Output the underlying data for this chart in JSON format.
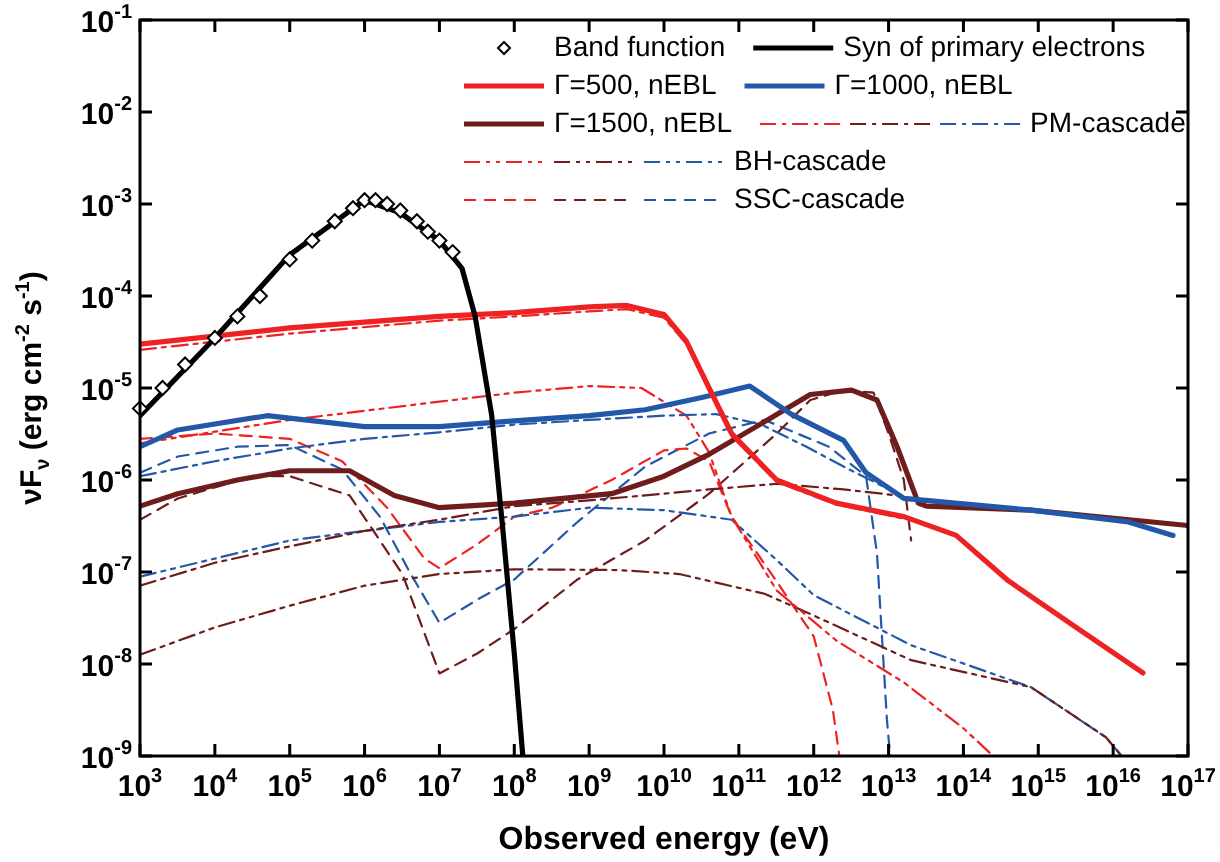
{
  "chart_data": {
    "type": "line",
    "xlabel": "Observed energy (eV)",
    "ylabel": "νF$_{ν}$ (erg cm$^{-2}$ s$^{-1}$)",
    "log": "xy",
    "grid": false,
    "legend": "top right",
    "marker": "none",
    "xlim": [
      1000.0,
      1e+17
    ],
    "ylim": [
      1e-09,
      0.1
    ],
    "xticks": [
      {
        "value": 1000.0,
        "label": "10$^{3}$"
      },
      {
        "value": 10000.0,
        "label": "10$^{4}$"
      },
      {
        "value": 100000.0,
        "label": "10$^{5}$"
      },
      {
        "value": 1000000.0,
        "label": "10$^{6}$"
      },
      {
        "value": 10000000.0,
        "label": "10$^{7}$"
      },
      {
        "value": 100000000.0,
        "label": "10$^{8}$"
      },
      {
        "value": 1000000000.0,
        "label": "10$^{9}$"
      },
      {
        "value": 10000000000.0,
        "label": "10$^{10}$"
      },
      {
        "value": 100000000000.0,
        "label": "10$^{11}$"
      },
      {
        "value": 1000000000000.0,
        "label": "10$^{12}$"
      },
      {
        "value": 10000000000000.0,
        "label": "10$^{13}$"
      },
      {
        "value": 100000000000000.0,
        "label": "10$^{14}$"
      },
      {
        "value": 1000000000000000.0,
        "label": "10$^{15}$"
      },
      {
        "value": 1e+16,
        "label": "10$^{16}$"
      },
      {
        "value": 1e+17,
        "label": "10$^{17}$"
      }
    ],
    "yticks": [
      {
        "value": 1e-09,
        "label": "10$^{-9}$"
      },
      {
        "value": 1e-08,
        "label": "10$^{-8}$"
      },
      {
        "value": 1e-07,
        "label": "10$^{-7}$"
      },
      {
        "value": 1e-06,
        "label": "10$^{-6}$"
      },
      {
        "value": 1e-05,
        "label": "10$^{-5}$"
      },
      {
        "value": 0.0001,
        "label": "10$^{-4}$"
      },
      {
        "value": 0.001,
        "label": "10$^{-3}$"
      },
      {
        "value": 0.01,
        "label": "10$^{-2}$"
      },
      {
        "value": 0.1,
        "label": "10$^{-1}$"
      }
    ],
    "series": [
      {
        "name": "Band function",
        "type": "scatter",
        "marker": "diamond",
        "color": "#000000",
        "x": [
          1000.0,
          2000.0,
          4000.0,
          10000.0,
          20000.0,
          40000.0,
          100000.0,
          200000.0,
          400000.0,
          700000.0,
          1000000.0,
          1400000.0,
          2000000.0,
          3000000.0,
          5000000.0,
          7000000.0,
          10000000.0,
          15000000.0
        ],
        "values": [
          6e-06,
          1e-05,
          1.8e-05,
          3.5e-05,
          6e-05,
          0.0001,
          0.00025,
          0.0004,
          0.00065,
          0.0009,
          0.0011,
          0.0011,
          0.001,
          0.00085,
          0.00065,
          0.0005,
          0.0004,
          0.0003
        ]
      },
      {
        "name": "Syn of primary electrons",
        "type": "line",
        "line_style": "solid",
        "color": "#000000",
        "x": [
          1000.0,
          10000.0,
          100000.0,
          1000000.0,
          3000000.0,
          10000000.0,
          20000000.0,
          30000000.0,
          50000000.0,
          70000000.0,
          100000000.0,
          130000000.0
        ],
        "values": [
          5e-06,
          3.5e-05,
          0.00028,
          0.0011,
          0.0008,
          0.0004,
          0.0002,
          6e-05,
          5e-06,
          3e-07,
          1.3e-08,
          1e-09
        ]
      },
      {
        "name": "Γ=500, nEBL",
        "type": "line",
        "line_style": "solid",
        "color": "#ee2222",
        "x": [
          1000.0,
          100000.0,
          10000000.0,
          100000000.0,
          1000000000.0,
          3200000000.0,
          10000000000.0,
          20000000000.0,
          40000000000.0,
          80000000000.0,
          320000000000.0,
          2000000000000.0,
          16000000000000.0,
          80000000000000.0,
          400000000000000.0,
          3200000000000000.0,
          2.5e+16
        ],
        "values": [
          3e-05,
          4.5e-05,
          6e-05,
          6.6e-05,
          7.6e-05,
          7.9e-05,
          6.3e-05,
          3.2e-05,
          1e-05,
          3.2e-06,
          1e-06,
          5.6e-07,
          4e-07,
          2.5e-07,
          8e-08,
          2.5e-08,
          8e-09
        ]
      },
      {
        "name": "Γ=1000, nEBL",
        "type": "line",
        "line_style": "solid",
        "color": "#2358a8",
        "x": [
          1000.0,
          3200.0,
          50000.0,
          1000000.0,
          10000000.0,
          100000000.0,
          1000000000.0,
          5600000000.0,
          32000000000.0,
          140000000000.0,
          500000000000.0,
          2500000000000.0,
          5000000000000.0,
          16000000000000.0,
          800000000000000.0,
          1.6e+16,
          6.3e+16
        ],
        "values": [
          2.3e-06,
          3.5e-06,
          5e-06,
          3.8e-06,
          3.8e-06,
          4.4e-06,
          5e-06,
          5.8e-06,
          7.9e-06,
          1.05e-05,
          5.2e-06,
          2.7e-06,
          1.2e-06,
          6.3e-07,
          4.7e-07,
          3.5e-07,
          2.5e-07
        ]
      },
      {
        "name": "Γ=1500, nEBL",
        "type": "line",
        "line_style": "solid",
        "color": "#6e1c1c",
        "x": [
          1000.0,
          3200.0,
          20000.0,
          100000.0,
          630000.0,
          2500000.0,
          10000000.0,
          100000000.0,
          2000000000.0,
          10000000000.0,
          40000000000.0,
          180000000000.0,
          900000000000.0,
          3200000000000.0,
          7000000000000.0,
          13000000000000.0,
          25000000000000.0,
          32000000000000.0,
          800000000000000.0,
          1e+17
        ],
        "values": [
          5.2e-07,
          7.1e-07,
          1e-06,
          1.26e-06,
          1.26e-06,
          6.8e-07,
          5e-07,
          5.6e-07,
          7.1e-07,
          1.1e-06,
          1.9e-06,
          3.9e-06,
          8.5e-06,
          9.5e-06,
          7.4e-06,
          2.3e-06,
          5.6e-07,
          5.2e-07,
          4.7e-07,
          3.2e-07
        ]
      },
      {
        "type": "line",
        "line_style": "dashdot",
        "color": "#ee2222",
        "x": [
          1000.0,
          100000.0,
          10000000.0,
          100000000.0,
          1000000000.0,
          3200000000.0,
          10000000000.0,
          20000000000.0,
          40000000000.0,
          80000000000.0,
          320000000000.0,
          2000000000000.0,
          16000000000000.0
        ],
        "values": [
          2.6e-05,
          3.9e-05,
          5.4e-05,
          6e-05,
          6.8e-05,
          7.2e-05,
          5.8e-05,
          3e-05,
          9.5e-06,
          3e-06,
          9.5e-07,
          5.4e-07,
          3.8e-07
        ]
      },
      {
        "type": "line",
        "line_style": "dashdot",
        "color": "#6e1c1c",
        "x": [
          1000.0,
          10000.0,
          100000.0,
          1000000.0,
          10000000.0,
          100000000.0,
          1000000000.0,
          10000000000.0,
          40000000000.0,
          320000000000.0,
          2500000000000.0,
          13000000000000.0,
          22000000000000.0
        ],
        "values": [
          7.1e-08,
          1.26e-07,
          1.9e-07,
          2.8e-07,
          3.7e-07,
          5.2e-07,
          6e-07,
          7.1e-07,
          7.9e-07,
          9.1e-07,
          7.9e-07,
          6.8e-07,
          6e-07
        ]
      },
      {
        "name": "PM-cascade",
        "type": "line",
        "line_style": "dashdot",
        "color": "#2358a8",
        "x": [
          1000.0,
          10000.0,
          100000.0,
          1000000.0,
          10000000.0,
          100000000.0,
          1000000000.0,
          10000000000.0,
          50000000000.0,
          200000000000.0,
          800000000000.0,
          2500000000000.0,
          20000000000000.0
        ],
        "values": [
          1.1e-06,
          1.6e-06,
          2.2e-06,
          2.8e-06,
          3.3e-06,
          4e-06,
          4.5e-06,
          5e-06,
          5.2e-06,
          4e-06,
          2.3e-06,
          1.4e-06,
          6e-07
        ]
      },
      {
        "type": "line",
        "line_style": "dashdotdot",
        "color": "#ee2222",
        "x": [
          1000.0,
          100000.0,
          10000000.0,
          100000000.0,
          1000000000.0,
          5000000000.0,
          20000000000.0,
          40000000000.0,
          80000000000.0,
          320000000000.0,
          2000000000000.0,
          16000000000000.0,
          100000000000000.0,
          250000000000000.0
        ],
        "values": [
          2.5e-06,
          4.5e-06,
          7.1e-06,
          8.9e-06,
          1.05e-05,
          1e-05,
          5e-06,
          2e-06,
          4e-07,
          6.3e-08,
          1.8e-08,
          6.3e-09,
          2e-09,
          1e-09
        ]
      },
      {
        "type": "line",
        "line_style": "dashdotdot",
        "color": "#6e1c1c",
        "x": [
          1000.0,
          10000.0,
          100000.0,
          1000000.0,
          10000000.0,
          100000000.0,
          2500000000.0,
          16000000000.0,
          220000000000.0,
          900000000000.0,
          20000000000000.0,
          800000000000000.0,
          8000000000000000.0,
          1.3e+16
        ],
        "values": [
          1.26e-08,
          2.5e-08,
          4.3e-08,
          7.1e-08,
          9.5e-08,
          1.07e-07,
          1.05e-07,
          9.5e-08,
          5.8e-08,
          3.5e-08,
          1.1e-08,
          5.6e-09,
          1.6e-09,
          1e-09
        ]
      },
      {
        "name": "BH-cascade",
        "type": "line",
        "line_style": "dashdotdot",
        "color": "#2358a8",
        "x": [
          1000.0,
          10000.0,
          100000.0,
          1000000.0,
          10000000.0,
          100000000.0,
          1000000000.0,
          10000000000.0,
          80000000000.0,
          320000000000.0,
          1000000000000.0,
          20000000000000.0,
          800000000000000.0,
          8000000000000000.0,
          1.3e+16
        ],
        "values": [
          8.9e-08,
          1.4e-07,
          2.2e-07,
          2.8e-07,
          3.5e-07,
          4e-07,
          5e-07,
          4.7e-07,
          3.7e-07,
          1.35e-07,
          5.6e-08,
          1.6e-08,
          5.6e-09,
          1.6e-09,
          1e-09
        ]
      },
      {
        "type": "line",
        "line_style": "dashed",
        "color": "#ee2222",
        "x": [
          1000.0,
          10000.0,
          100000.0,
          500000.0,
          2000000.0,
          6300000.0,
          10000000.0,
          32000000.0,
          100000000.0,
          320000000.0,
          2000000000.0,
          10000000000.0,
          20000000000.0,
          40000000000.0,
          80000000000.0,
          320000000000.0,
          1000000000000.0,
          1800000000000.0,
          2200000000000.0
        ],
        "values": [
          2.8e-06,
          3.2e-06,
          2.8e-06,
          1.6e-06,
          5e-07,
          1.4e-07,
          1.1e-07,
          2e-07,
          4e-07,
          5e-07,
          1e-06,
          2.1e-06,
          2.2e-06,
          1.6e-06,
          4e-07,
          7.9e-08,
          2e-08,
          3.2e-09,
          1e-09
        ]
      },
      {
        "type": "line",
        "line_style": "dashed",
        "color": "#6e1c1c",
        "x": [
          1000.0,
          3200.0,
          32000.0,
          100000.0,
          630000.0,
          3200000.0,
          10000000.0,
          32000000.0,
          100000000.0,
          700000000.0,
          5600000000.0,
          40000000000.0,
          320000000000.0,
          900000000000.0,
          2500000000000.0,
          6300000000000.0,
          10000000000000.0,
          16000000000000.0,
          20000000000000.0
        ],
        "values": [
          3.7e-07,
          6.3e-07,
          1.1e-06,
          1.1e-06,
          6.8e-07,
          9.5e-08,
          7.9e-09,
          1.3e-08,
          2.4e-08,
          8.3e-08,
          2.2e-07,
          7.1e-07,
          3.2e-06,
          7.4e-06,
          9.5e-06,
          8.9e-06,
          3.2e-06,
          1e-06,
          2.2e-07
        ]
      },
      {
        "name": "SSC-cascade",
        "type": "line",
        "line_style": "dashed",
        "color": "#2358a8",
        "x": [
          1000.0,
          3200.0,
          20000.0,
          100000.0,
          500000.0,
          1600000.0,
          4000000.0,
          10000000.0,
          32000000.0,
          100000000.0,
          700000000.0,
          5600000000.0,
          40000000000.0,
          220000000000.0,
          1600000000000.0,
          5000000000000.0,
          7000000000000.0,
          9500000000000.0,
          10500000000000.0
        ],
        "values": [
          1.2e-06,
          1.8e-06,
          2.3e-06,
          2.4e-06,
          1.3e-06,
          4e-07,
          1e-07,
          2.8e-08,
          5e-08,
          8.3e-08,
          3.5e-07,
          1.4e-06,
          3.2e-06,
          4.5e-06,
          2.3e-06,
          1.1e-06,
          1.6e-07,
          2.5e-09,
          1e-09
        ]
      }
    ]
  }
}
